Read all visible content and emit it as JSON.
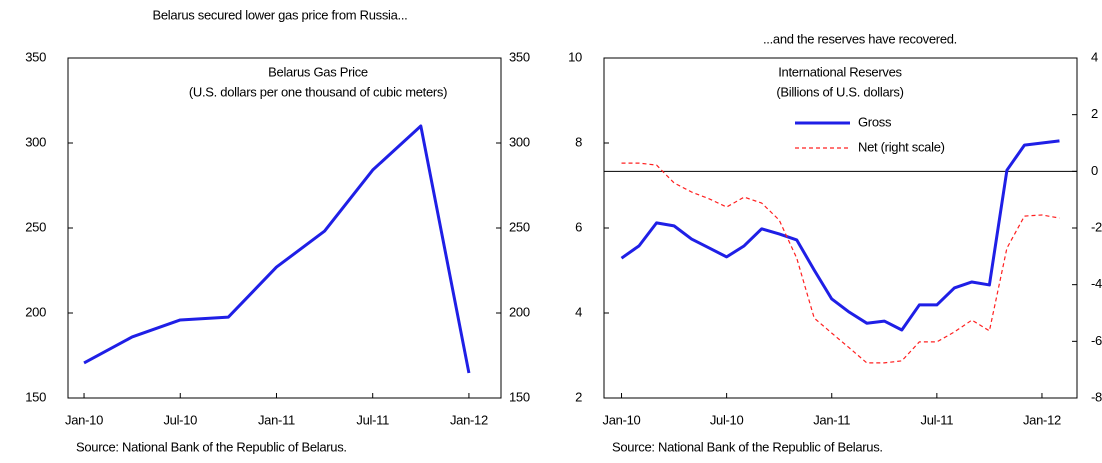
{
  "chart_data": [
    {
      "type": "line",
      "caption": "Belarus secured lower gas price from Russia...",
      "title": "Belarus Gas Price",
      "subtitle": "(U.S. dollars per one thousand of cubic meters)",
      "source": "Source: National Bank of the Republic of Belarus.",
      "x": [
        "2010-01",
        "2010-04",
        "2010-07",
        "2010-10",
        "2011-01",
        "2011-04",
        "2011-07",
        "2011-10",
        "2012-01"
      ],
      "values": [
        170.6,
        185.9,
        195.9,
        197.6,
        227,
        248.2,
        284.1,
        310,
        164.7
      ],
      "color": "#1f1fe6",
      "xlim": [
        "2009-12",
        "2012-03"
      ],
      "xticks": [
        {
          "value": "2010-01",
          "label": "Jan-10"
        },
        {
          "value": "2010-07",
          "label": "Jul-10"
        },
        {
          "value": "2011-01",
          "label": "Jan-11"
        },
        {
          "value": "2011-07",
          "label": "Jul-11"
        },
        {
          "value": "2012-01",
          "label": "Jan-12"
        }
      ],
      "ylim": [
        150,
        350
      ],
      "yticks": [
        150,
        200,
        250,
        300,
        350
      ],
      "y2lim": [
        150,
        350
      ],
      "y2ticks": [
        150,
        200,
        250,
        300,
        350
      ]
    },
    {
      "type": "line",
      "caption": "...and the reserves have recovered.",
      "title": "International Reserves",
      "subtitle": "(Billions of U.S. dollars)",
      "source": "Source: National Bank of the Republic of Belarus.",
      "x": [
        "2010-01",
        "2010-02",
        "2010-03",
        "2010-04",
        "2010-05",
        "2010-06",
        "2010-07",
        "2010-08",
        "2010-09",
        "2010-10",
        "2010-11",
        "2010-12",
        "2011-01",
        "2011-02",
        "2011-03",
        "2011-04",
        "2011-05",
        "2011-06",
        "2011-07",
        "2011-08",
        "2011-09",
        "2011-10",
        "2011-11",
        "2011-12",
        "2012-01",
        "2012-02"
      ],
      "series": [
        {
          "name": "Gross",
          "color": "#1f1fe6",
          "style": "solid",
          "values": [
            5.29,
            5.58,
            6.12,
            6.05,
            5.74,
            5.53,
            5.32,
            5.58,
            5.98,
            5.86,
            5.72,
            5.01,
            4.33,
            4.02,
            3.76,
            3.81,
            3.6,
            4.19,
            4.19,
            4.59,
            4.73,
            4.66,
            7.36,
            7.95,
            8.0,
            8.05
          ]
        },
        {
          "name": "Net (right scale)",
          "color": "#ff2020",
          "style": "dashed",
          "axis": "y2",
          "values": [
            0.29,
            0.29,
            0.22,
            -0.41,
            -0.73,
            -0.97,
            -1.26,
            -0.91,
            -1.12,
            -1.72,
            -3.06,
            -5.18,
            -5.71,
            -6.23,
            -6.76,
            -6.76,
            -6.69,
            -6.02,
            -6.02,
            -5.67,
            -5.25,
            -5.63,
            -2.71,
            -1.58,
            -1.54,
            -1.65
          ]
        }
      ],
      "legend": "top",
      "y2_zero_line": true,
      "xlim": [
        "2009-12",
        "2012-03"
      ],
      "xticks": [
        {
          "value": "2010-01",
          "label": "Jan-10"
        },
        {
          "value": "2010-07",
          "label": "Jul-10"
        },
        {
          "value": "2011-01",
          "label": "Jan-11"
        },
        {
          "value": "2011-07",
          "label": "Jul-11"
        },
        {
          "value": "2012-01",
          "label": "Jan-12"
        }
      ],
      "ylim": [
        2,
        10
      ],
      "yticks": [
        2,
        4,
        6,
        8,
        10
      ],
      "y2lim": [
        -8,
        4
      ],
      "y2ticks": [
        -8,
        -6,
        -4,
        -2,
        0,
        2,
        4
      ]
    }
  ]
}
